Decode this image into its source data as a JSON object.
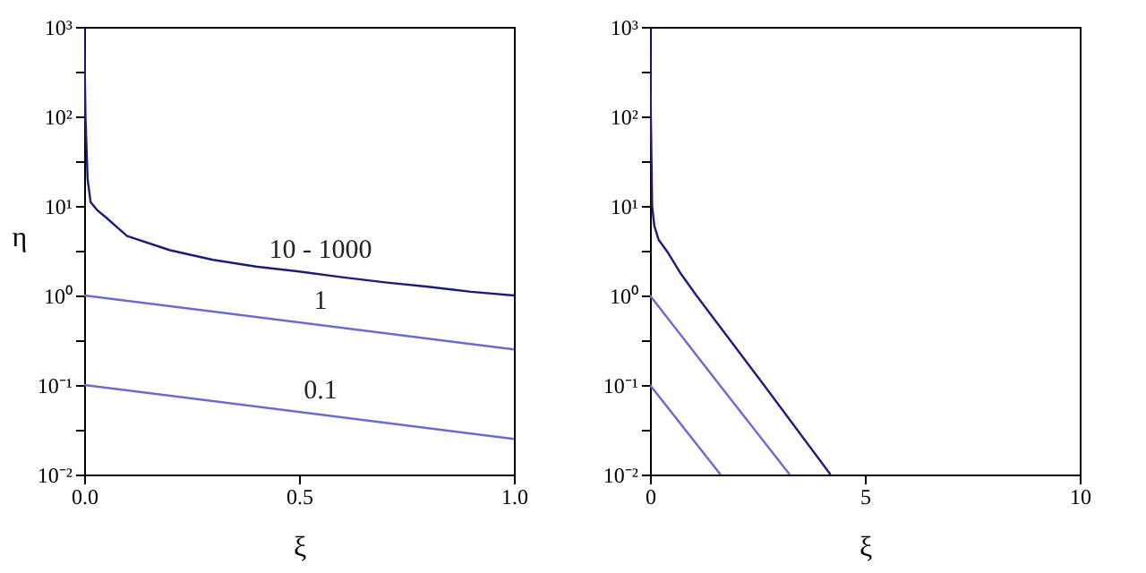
{
  "chart_data": [
    {
      "type": "line",
      "xlabel": "ξ",
      "ylabel": "η",
      "log": "y",
      "grid": false,
      "xlim": [
        0,
        1
      ],
      "xticks": [
        {
          "value": 0,
          "label": "0.0"
        },
        0.5,
        {
          "value": 1,
          "label": "1.0"
        }
      ],
      "ylim": [
        0.01,
        1000
      ],
      "yticks": [
        {
          "value": 0.01,
          "label": "10⁻²"
        },
        {
          "value": 0.0316,
          "label": null
        },
        {
          "value": 0.1,
          "label": "10⁻¹"
        },
        {
          "value": 0.316,
          "label": null
        },
        {
          "value": 1,
          "label": "10⁰"
        },
        {
          "value": 3.16,
          "label": null
        },
        {
          "value": 10,
          "label": "10¹"
        },
        {
          "value": 31.6,
          "label": null
        },
        {
          "value": 100,
          "label": "10²"
        },
        {
          "value": 316,
          "label": null
        },
        {
          "value": 1000,
          "label": "10³"
        }
      ],
      "series": [
        {
          "name": "10 - 1000",
          "color": "#1c1c7a",
          "x": [
            0,
            0.003,
            0.008,
            0.015,
            0.03,
            0.05,
            0.1,
            0.2,
            0.3,
            0.4,
            0.5,
            0.6,
            0.7,
            0.8,
            0.9,
            1.0
          ],
          "values": [
            1000,
            100,
            20,
            11,
            9,
            7.5,
            4.6,
            3.2,
            2.5,
            2.1,
            1.85,
            1.6,
            1.4,
            1.25,
            1.1,
            1.0
          ]
        },
        {
          "name": "1",
          "color": "#6a6ad0",
          "x": [
            0,
            1
          ],
          "values": [
            1,
            0.25
          ]
        },
        {
          "name": "0.1",
          "color": "#6a6ad0",
          "x": [
            0,
            1
          ],
          "values": [
            0.1,
            0.025
          ]
        }
      ]
    },
    {
      "type": "line",
      "xlabel": "ξ",
      "log": "y",
      "grid": false,
      "xlim": [
        0,
        10
      ],
      "xticks": [
        0,
        5,
        10
      ],
      "ylim": [
        0.01,
        1000
      ],
      "yticks": [
        {
          "value": 0.01,
          "label": "10⁻²"
        },
        {
          "value": 0.0316,
          "label": null
        },
        {
          "value": 0.1,
          "label": "10⁻¹"
        },
        {
          "value": 0.316,
          "label": null
        },
        {
          "value": 1,
          "label": "10⁰"
        },
        {
          "value": 3.16,
          "label": null
        },
        {
          "value": 10,
          "label": "10¹"
        },
        {
          "value": 31.6,
          "label": null
        },
        {
          "value": 100,
          "label": "10²"
        },
        {
          "value": 316,
          "label": null
        },
        {
          "value": 1000,
          "label": "10³"
        }
      ],
      "series": [
        {
          "color": "#1c1c7a",
          "x": [
            0,
            0.02,
            0.05,
            0.1,
            0.2,
            0.42,
            0.7,
            1.08,
            2.65,
            4.2
          ],
          "values": [
            1000,
            100,
            10,
            6,
            4.2,
            3.0,
            1.8,
            1,
            0.1,
            0.01
          ]
        },
        {
          "color": "#6a6ad0",
          "x": [
            0,
            1.62,
            3.25
          ],
          "values": [
            1,
            0.1,
            0.01
          ]
        },
        {
          "color": "#6a6ad0",
          "x": [
            0,
            1.64
          ],
          "values": [
            0.1,
            0.01
          ]
        }
      ]
    }
  ]
}
